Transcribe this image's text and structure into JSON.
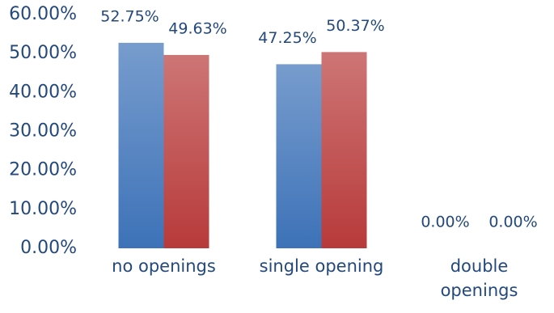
{
  "chart_data": {
    "type": "bar",
    "categories": [
      "no openings",
      "single opening",
      "double openings"
    ],
    "series": [
      {
        "color": "#3d72b8",
        "values": [
          52.75,
          47.25,
          0
        ],
        "value_labels": [
          "52.75%",
          "47.25%",
          "0.00%"
        ]
      },
      {
        "color": "#b83a3a",
        "values": [
          49.63,
          50.37,
          0
        ],
        "value_labels": [
          "49.63%",
          "50.37%",
          "0.00%"
        ]
      }
    ],
    "ylim": [
      0,
      60
    ],
    "yticks": [
      {
        "value": 0,
        "label": "0.00%"
      },
      {
        "value": 10,
        "label": "10.00%"
      },
      {
        "value": 20,
        "label": "20.00%"
      },
      {
        "value": 30,
        "label": "30.00%"
      },
      {
        "value": 40,
        "label": "40.00%"
      },
      {
        "value": 50,
        "label": "50.00%"
      },
      {
        "value": 60,
        "label": "60.00%"
      }
    ],
    "grid": false
  }
}
